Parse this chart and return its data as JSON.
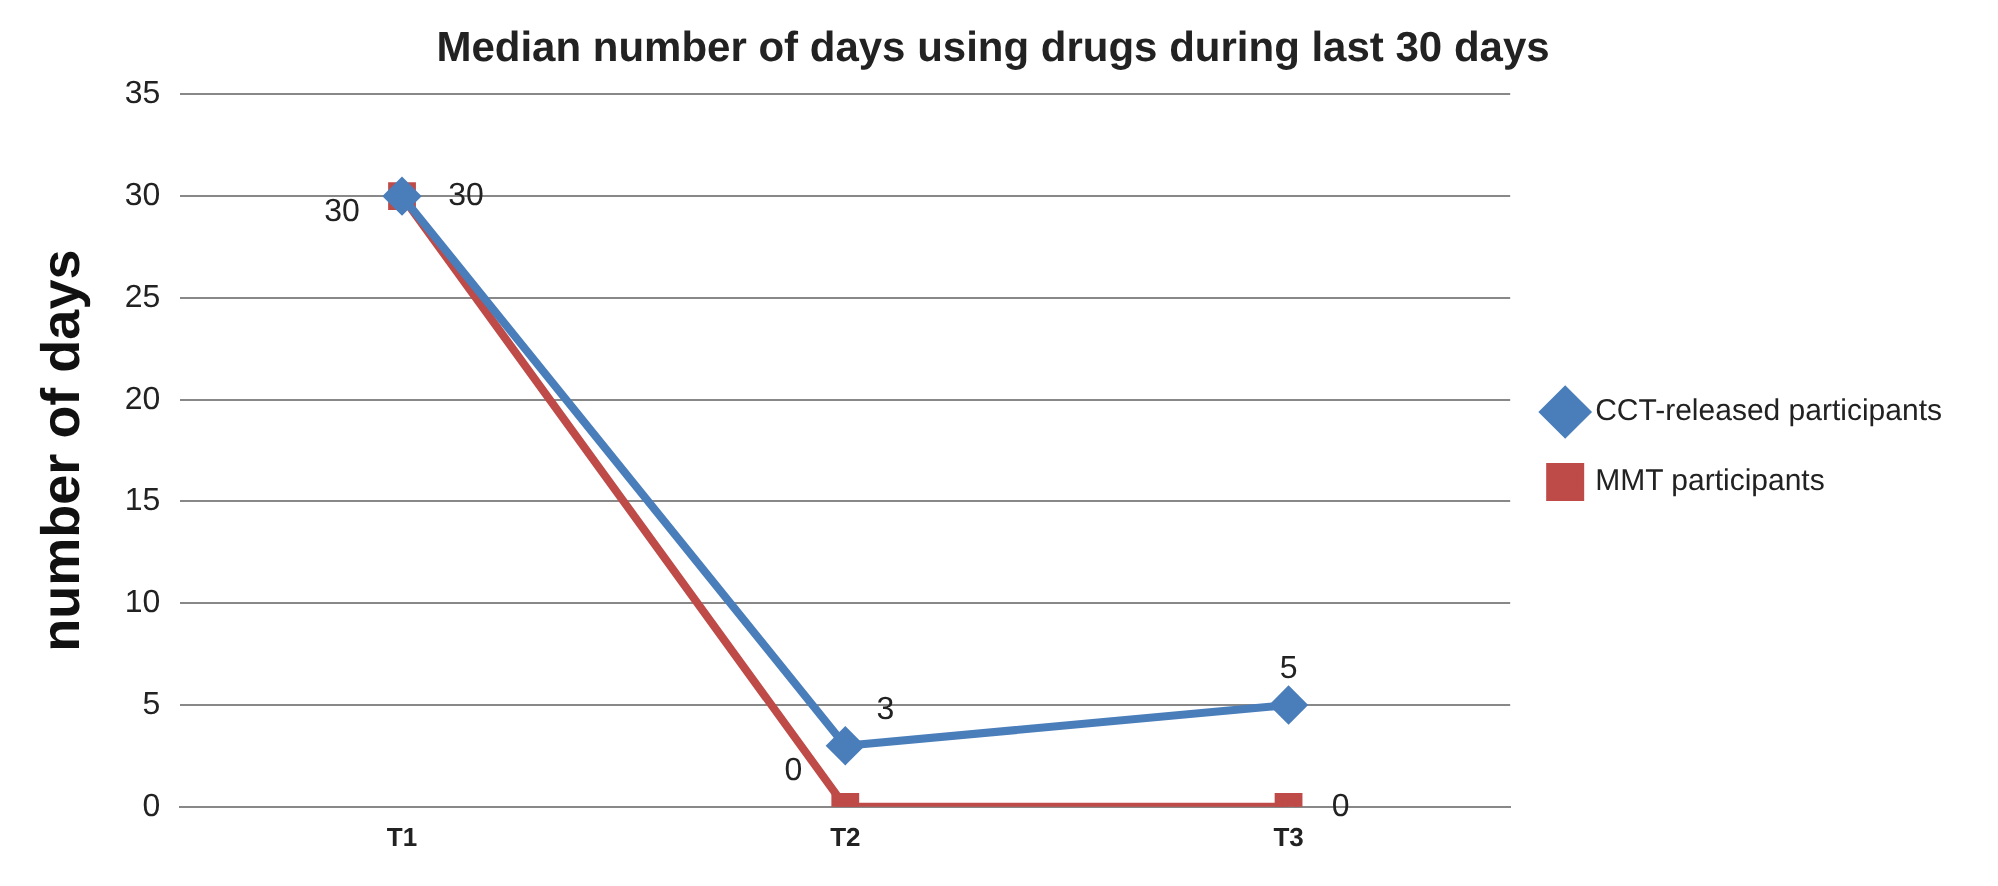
{
  "chart_data": {
    "type": "line",
    "title": "Median number of days using drugs during last 30 days",
    "ylabel": "number of days",
    "categories": [
      "T1",
      "T2",
      "T3"
    ],
    "series": [
      {
        "name": "CCT-released participants",
        "color": "#4a7ebb",
        "values": [
          30,
          3,
          5
        ],
        "marker": "diamond"
      },
      {
        "name": "MMT participants",
        "color": "#be4b48",
        "values": [
          30,
          0,
          0
        ],
        "marker": "square"
      }
    ],
    "ylim": [
      0,
      35
    ],
    "yticks": [
      0,
      5,
      10,
      15,
      20,
      25,
      30,
      35
    ],
    "grid": "y",
    "legend": "right",
    "data_labels": true,
    "line_style": "solid"
  }
}
